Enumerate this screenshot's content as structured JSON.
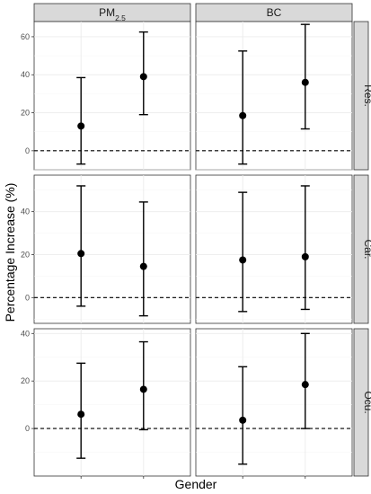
{
  "chart_data": {
    "type": "scatter",
    "xlabel": "Gender",
    "ylabel": "Percentage Increase (%)",
    "columns": [
      {
        "label_main": "PM",
        "label_sub": "2.5"
      },
      {
        "label_main": "BC",
        "label_sub": ""
      }
    ],
    "rows": [
      {
        "label": "Res.",
        "ylim": [
          -10,
          68
        ],
        "ticks": [
          0,
          20,
          40,
          60
        ]
      },
      {
        "label": "Car.",
        "ylim": [
          -12,
          57
        ],
        "ticks": [
          0,
          20,
          40
        ]
      },
      {
        "label": "Ocu.",
        "ylim": [
          -20,
          42
        ],
        "ticks": [
          0,
          20,
          40
        ]
      }
    ],
    "x_categories": [
      "1",
      "2"
    ],
    "x_tick_labels_shown": false,
    "zero_reference_line": true,
    "grid": true,
    "panels": [
      {
        "row": 0,
        "col": 0,
        "points": [
          {
            "x": 1,
            "y": 13,
            "low": -7,
            "high": 38.5
          },
          {
            "x": 2,
            "y": 39,
            "low": 19,
            "high": 62.5
          }
        ]
      },
      {
        "row": 0,
        "col": 1,
        "points": [
          {
            "x": 1,
            "y": 18.5,
            "low": -7,
            "high": 52.5
          },
          {
            "x": 2,
            "y": 36,
            "low": 11.5,
            "high": 66.5
          }
        ]
      },
      {
        "row": 1,
        "col": 0,
        "points": [
          {
            "x": 1,
            "y": 20.5,
            "low": -4,
            "high": 52
          },
          {
            "x": 2,
            "y": 14.5,
            "low": -8.5,
            "high": 44.5
          }
        ]
      },
      {
        "row": 1,
        "col": 1,
        "points": [
          {
            "x": 1,
            "y": 17.5,
            "low": -6.5,
            "high": 49
          },
          {
            "x": 2,
            "y": 19,
            "low": -5.5,
            "high": 52
          }
        ]
      },
      {
        "row": 2,
        "col": 0,
        "points": [
          {
            "x": 1,
            "y": 6,
            "low": -12.5,
            "high": 27.5
          },
          {
            "x": 2,
            "y": 16.5,
            "low": -0.5,
            "high": 36.5
          }
        ]
      },
      {
        "row": 2,
        "col": 1,
        "points": [
          {
            "x": 1,
            "y": 3.5,
            "low": -15,
            "high": 26
          },
          {
            "x": 2,
            "y": 18.5,
            "low": 0,
            "high": 40
          }
        ]
      }
    ]
  }
}
